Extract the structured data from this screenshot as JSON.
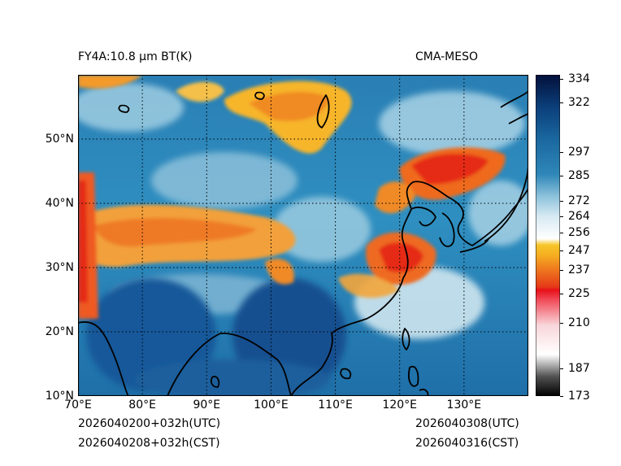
{
  "header": {
    "product": "FY4A:10.8 µm BT(K)",
    "model": "CMA-MESO"
  },
  "footer": {
    "init_utc": "2026040200+032h(UTC)",
    "init_cst": "2026040208+032h(CST)",
    "valid_utc": "2026040308(UTC)",
    "valid_cst": "2026040316(CST)"
  },
  "map": {
    "lon_range": [
      70,
      140
    ],
    "lat_range": [
      10,
      60
    ],
    "lon_ticks": [
      "70°E",
      "80°E",
      "90°E",
      "100°E",
      "110°E",
      "120°E",
      "130°E"
    ],
    "lat_ticks": [
      "10°N",
      "20°N",
      "30°N",
      "40°N",
      "50°N"
    ]
  },
  "colorbar": {
    "range": [
      173,
      336
    ],
    "ticks": [
      "334",
      "322",
      "297",
      "285",
      "272",
      "264",
      "256",
      "247",
      "237",
      "225",
      "210",
      "187",
      "173"
    ],
    "colors": {
      "cold_dark": "#000000",
      "grey": "#9a9a9a",
      "red": "#e8101a",
      "orange": "#ef7f1f",
      "yellow": "#f7c52a",
      "white": "#f4f7f9",
      "light_blue": "#8fc3dc",
      "mid_blue": "#2f87b8",
      "deep_blue": "#0b3f7a",
      "navy": "#03103a"
    }
  }
}
